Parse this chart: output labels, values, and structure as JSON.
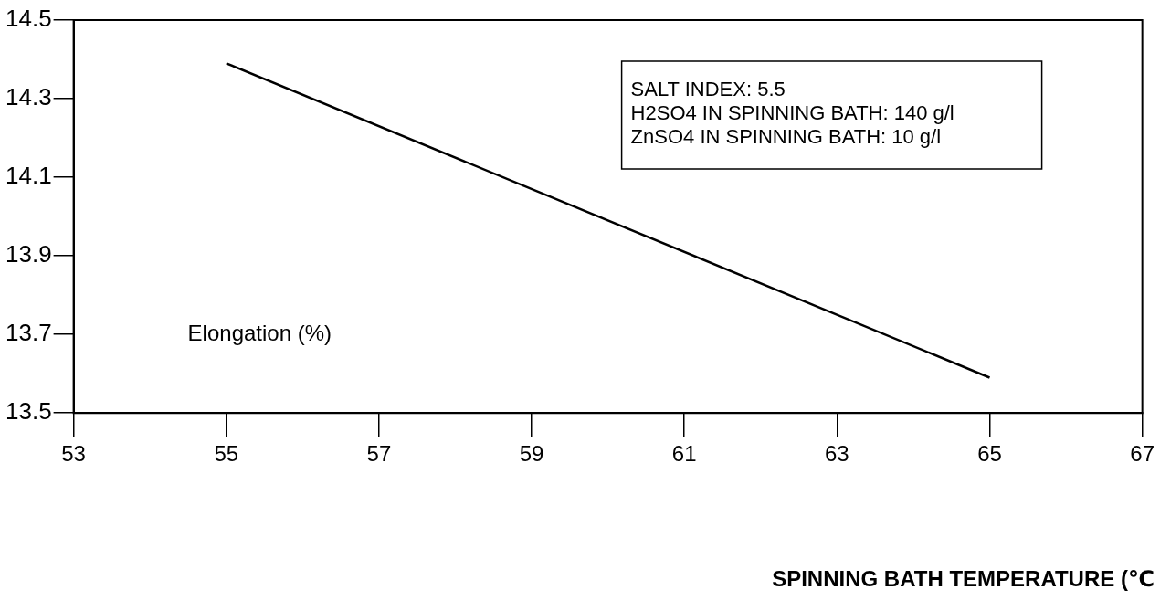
{
  "chart_data": {
    "type": "line",
    "xlabel": "SPINNING BATH TEMPERATURE (℃",
    "ylabel": "Elongation (%)",
    "x": [
      55,
      65
    ],
    "values": [
      14.39,
      13.59
    ],
    "color": "#000000",
    "marker": "none",
    "line_style": "solid",
    "xlim": [
      53,
      67
    ],
    "xticks": [
      53,
      55,
      57,
      59,
      61,
      63,
      65,
      67
    ],
    "ylim": [
      13.5,
      14.5
    ],
    "yticks": [
      13.5,
      13.7,
      13.9,
      14.1,
      14.3,
      14.5
    ],
    "annotations": [
      "SALT INDEX: 5.5",
      "H2SO4 IN SPINNING BATH: 140 g/l",
      "ZnSO4 IN SPINNING BATH: 10 g/l"
    ]
  }
}
